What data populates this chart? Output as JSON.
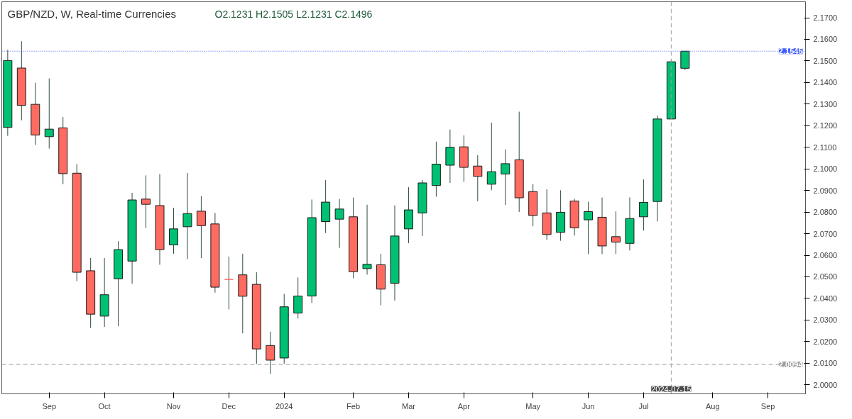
{
  "chart_data": {
    "type": "candlestick",
    "title": "GBP/NZD, W, Real-time Currencies",
    "subtitle": "O2.1231   H2.1505   L2.1231   C2.1496",
    "x": [
      "2023-08-14",
      "2023-08-21",
      "2023-08-28",
      "2023-09-04",
      "2023-09-11",
      "2023-09-18",
      "2023-09-25",
      "2023-10-02",
      "2023-10-09",
      "2023-10-16",
      "2023-10-23",
      "2023-10-30",
      "2023-11-06",
      "2023-11-13",
      "2023-11-20",
      "2023-11-27",
      "2023-12-04",
      "2023-12-11",
      "2023-12-18",
      "2023-12-25",
      "2024-01-01",
      "2024-01-08",
      "2024-01-15",
      "2024-01-22",
      "2024-01-29",
      "2024-02-05",
      "2024-02-12",
      "2024-02-19",
      "2024-02-26",
      "2024-03-04",
      "2024-03-11",
      "2024-03-18",
      "2024-03-25",
      "2024-04-01",
      "2024-04-08",
      "2024-04-15",
      "2024-04-22",
      "2024-04-29",
      "2024-05-06",
      "2024-05-13",
      "2024-05-20",
      "2024-05-27",
      "2024-06-03",
      "2024-06-10",
      "2024-06-17",
      "2024-06-24",
      "2024-07-01",
      "2024-07-08",
      "2024-07-15",
      "2024-07-22"
    ],
    "ohlc": [
      [
        2.1192,
        2.1552,
        2.1153,
        2.1502
      ],
      [
        2.1467,
        2.1591,
        2.1225,
        2.1294
      ],
      [
        2.1299,
        2.1399,
        2.1111,
        2.1157
      ],
      [
        2.1149,
        2.1419,
        2.1094,
        2.1184
      ],
      [
        2.119,
        2.124,
        2.0929,
        2.0978
      ],
      [
        2.098,
        2.1022,
        2.048,
        2.0521
      ],
      [
        2.0528,
        2.0587,
        2.0263,
        2.0327
      ],
      [
        2.0318,
        2.0587,
        2.0268,
        2.0417
      ],
      [
        2.0491,
        2.0665,
        2.0271,
        2.0626
      ],
      [
        2.0573,
        2.0889,
        2.0468,
        2.0856
      ],
      [
        2.086,
        2.097,
        2.0726,
        2.0836
      ],
      [
        2.083,
        2.0976,
        2.0556,
        2.0626
      ],
      [
        2.0648,
        2.082,
        2.0607,
        2.0722
      ],
      [
        2.0732,
        2.0981,
        2.0582,
        2.0793
      ],
      [
        2.0804,
        2.0874,
        2.0587,
        2.0737
      ],
      [
        2.0745,
        2.0796,
        2.0427,
        2.0452
      ],
      [
        2.0488,
        2.0594,
        2.0349,
        2.0488
      ],
      [
        2.0509,
        2.0607,
        2.0238,
        2.041
      ],
      [
        2.0465,
        2.0521,
        2.0097,
        2.0166
      ],
      [
        2.0182,
        2.0246,
        2.005,
        2.0114
      ],
      [
        2.0124,
        2.0421,
        2.0097,
        2.0361
      ],
      [
        2.0332,
        2.0497,
        2.0307,
        2.0411
      ],
      [
        2.0411,
        2.0858,
        2.0379,
        2.0774
      ],
      [
        2.0756,
        2.0948,
        2.0703,
        2.0846
      ],
      [
        2.0767,
        2.086,
        2.0634,
        2.0814
      ],
      [
        2.0778,
        2.0867,
        2.0493,
        2.0524
      ],
      [
        2.0538,
        2.0834,
        2.051,
        2.0558
      ],
      [
        2.0556,
        2.0607,
        2.0368,
        2.0443
      ],
      [
        2.047,
        2.0831,
        2.039,
        2.0689
      ],
      [
        2.0722,
        2.0915,
        2.0656,
        2.081
      ],
      [
        2.0796,
        2.0948,
        2.0689,
        2.0935
      ],
      [
        2.0923,
        2.1126,
        2.0871,
        2.1022
      ],
      [
        2.1017,
        2.1182,
        2.0935,
        2.11
      ],
      [
        2.1102,
        2.1155,
        2.094,
        2.1007
      ],
      [
        2.1013,
        2.1063,
        2.085,
        2.0965
      ],
      [
        2.0929,
        2.1214,
        2.0901,
        2.0987
      ],
      [
        2.0976,
        2.109,
        2.0833,
        2.1024
      ],
      [
        2.1042,
        2.1265,
        2.08,
        2.0866
      ],
      [
        2.0895,
        2.093,
        2.0734,
        2.0784
      ],
      [
        2.0796,
        2.0905,
        2.0671,
        2.0696
      ],
      [
        2.0706,
        2.0901,
        2.0667,
        2.0799
      ],
      [
        2.0851,
        2.0861,
        2.0691,
        2.0727
      ],
      [
        2.0764,
        2.0848,
        2.0605,
        2.0802
      ],
      [
        2.0776,
        2.0867,
        2.0605,
        2.0643
      ],
      [
        2.0686,
        2.0803,
        2.0605,
        2.0661
      ],
      [
        2.0655,
        2.0868,
        2.0622,
        2.077
      ],
      [
        2.0778,
        2.0951,
        2.0714,
        2.0845
      ],
      [
        2.0849,
        2.1247,
        2.0756,
        2.1231
      ],
      [
        2.1231,
        2.1505,
        2.1231,
        2.1496
      ],
      [
        2.1466,
        2.1545,
        2.1458,
        2.1545
      ]
    ],
    "colors": [
      "#00c173",
      "#ff6b61",
      "#ff6b61",
      "#00c173",
      "#ff6b61",
      "#ff6b61",
      "#ff6b61",
      "#00c173",
      "#00c173",
      "#00c173",
      "#ff6b61",
      "#ff6b61",
      "#00c173",
      "#00c173",
      "#ff6b61",
      "#ff6b61",
      "#ff6b61",
      "#ff6b61",
      "#ff6b61",
      "#ff6b61",
      "#00c173",
      "#00c173",
      "#00c173",
      "#00c173",
      "#00c173",
      "#ff6b61",
      "#00c173",
      "#ff6b61",
      "#00c173",
      "#00c173",
      "#00c173",
      "#00c173",
      "#00c173",
      "#ff6b61",
      "#ff6b61",
      "#00c173",
      "#00c173",
      "#ff6b61",
      "#ff6b61",
      "#ff6b61",
      "#00c173",
      "#ff6b61",
      "#00c173",
      "#ff6b61",
      "#ff6b61",
      "#00c173",
      "#00c173",
      "#00c173",
      "#00c173",
      "#00c173"
    ],
    "xlim": [
      "2023-08-11",
      "2024-09-21"
    ],
    "xticks": [
      {
        "value": "2023-09-04",
        "label": "Sep"
      },
      {
        "value": "2023-10-02",
        "label": "Oct"
      },
      {
        "value": "2023-11-06",
        "label": "Nov"
      },
      {
        "value": "2023-12-04",
        "label": "Dec"
      },
      {
        "value": "2024-01-01",
        "label": "2024"
      },
      {
        "value": "2024-02-05",
        "label": "Feb"
      },
      {
        "value": "2024-03-04",
        "label": "Mar"
      },
      {
        "value": "2024-04-01",
        "label": "Apr"
      },
      {
        "value": "2024-05-06",
        "label": "May"
      },
      {
        "value": "2024-06-03",
        "label": "Jun"
      },
      {
        "value": "2024-07-01",
        "label": "Jul"
      },
      {
        "value": "2024-08-05",
        "label": "Aug"
      },
      {
        "value": "2024-09-02",
        "label": "Sep"
      }
    ],
    "ylim": [
      1.9958,
      2.1774
    ],
    "yticks": [
      {
        "value": 2.0,
        "label": "2.0000"
      },
      {
        "value": 2.01,
        "label": "2.0100"
      },
      {
        "value": 2.02,
        "label": "2.0200"
      },
      {
        "value": 2.03,
        "label": "2.0300"
      },
      {
        "value": 2.04,
        "label": "2.0400"
      },
      {
        "value": 2.05,
        "label": "2.0500"
      },
      {
        "value": 2.06,
        "label": "2.0600"
      },
      {
        "value": 2.07,
        "label": "2.0700"
      },
      {
        "value": 2.08,
        "label": "2.0800"
      },
      {
        "value": 2.09,
        "label": "2.0900"
      },
      {
        "value": 2.1,
        "label": "2.1000"
      },
      {
        "value": 2.11,
        "label": "2.1100"
      },
      {
        "value": 2.12,
        "label": "2.1200"
      },
      {
        "value": 2.13,
        "label": "2.1300"
      },
      {
        "value": 2.14,
        "label": "2.1400"
      },
      {
        "value": 2.15,
        "label": "2.1500"
      },
      {
        "value": 2.16,
        "label": "2.1600"
      },
      {
        "value": 2.17,
        "label": "2.1700"
      }
    ],
    "ref_lines": [
      {
        "axis": "y",
        "value": 2.1545,
        "label": "2.1545",
        "color": "#3d5afe",
        "line_style": "dotted"
      },
      {
        "axis": "y",
        "value": 2.0094,
        "label": "2.0094",
        "color": "#9e9e9e",
        "line_style": "dashed"
      },
      {
        "axis": "x",
        "value": "2024-07-15",
        "label": "2024-07-15",
        "color": "#9e9e9e",
        "line_style": "dashed"
      }
    ]
  }
}
